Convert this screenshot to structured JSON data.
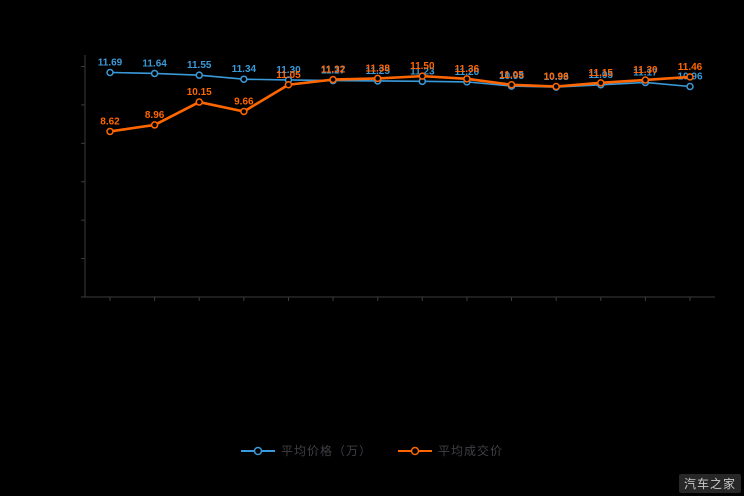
{
  "watermark": "汽车之家",
  "legend": {
    "items": [
      {
        "label": "平均价格（万）",
        "color": "#3a9ad9"
      },
      {
        "label": "平均成交价",
        "color": "#ff6600"
      }
    ]
  },
  "chart_data": {
    "type": "line",
    "title": "",
    "xlabel": "",
    "ylabel": "",
    "x": [
      1,
      2,
      3,
      4,
      5,
      6,
      7,
      8,
      9,
      10,
      11,
      12,
      13,
      14
    ],
    "series": [
      {
        "name": "平均价格（万）",
        "color": "#3a9ad9",
        "line_width": 1.6,
        "values": [
          11.69,
          11.64,
          11.55,
          11.34,
          11.3,
          11.27,
          11.25,
          11.23,
          11.2,
          10.98,
          10.93,
          11.05,
          11.17,
          10.96
        ]
      },
      {
        "name": "平均成交价",
        "color": "#ff6600",
        "line_width": 2.6,
        "values": [
          8.62,
          8.96,
          10.15,
          9.66,
          11.05,
          11.32,
          11.38,
          11.5,
          11.36,
          11.05,
          10.96,
          11.15,
          11.3,
          11.46
        ]
      }
    ],
    "ylim": [
      0,
      12.6
    ],
    "y_ticks": [
      0,
      2,
      4,
      6,
      8,
      10,
      12
    ],
    "grid": false,
    "legend_position": "bottom",
    "background": "#000000",
    "axis_color": "#3c3c3c",
    "marker_fill": "#000000",
    "label_decimals": 2
  }
}
